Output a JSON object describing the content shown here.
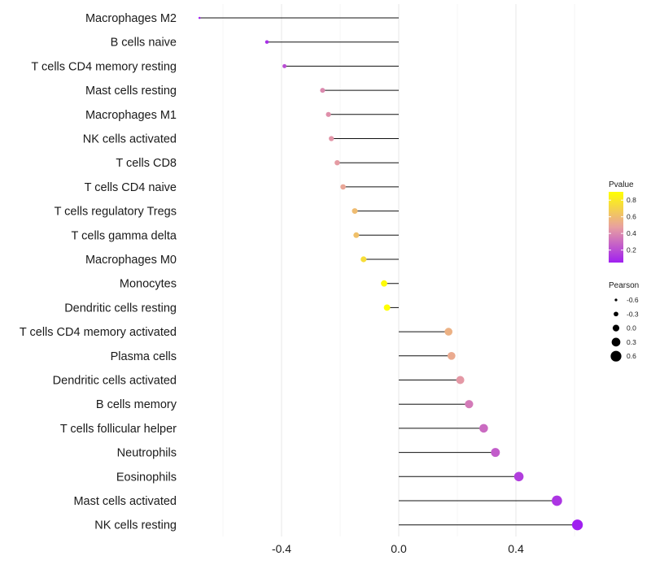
{
  "chart_data": {
    "type": "lollipop",
    "title": "",
    "xlabel": "",
    "ylabel": "",
    "xlim": [
      -0.68,
      0.68
    ],
    "x_ticks": [
      -0.4,
      0.0,
      0.4
    ],
    "x_tick_labels": [
      "-0.4",
      "0.0",
      "0.4"
    ],
    "grid": true,
    "categories": [
      "Macrophages M2",
      "B cells naive",
      "T cells CD4 memory resting",
      "Mast cells resting",
      "Macrophages M1",
      "NK cells activated",
      "T cells CD8",
      "T cells CD4 naive",
      "T cells regulatory  Tregs ",
      "T cells gamma delta",
      "Macrophages M0",
      "Monocytes",
      "Dendritic cells resting",
      "T cells CD4 memory activated",
      "Plasma cells",
      "Dendritic cells activated",
      "B cells memory",
      "T cells follicular helper",
      "Neutrophils",
      "Eosinophils",
      "Mast cells activated",
      "NK cells resting"
    ],
    "pearson": [
      -0.68,
      -0.45,
      -0.39,
      -0.26,
      -0.24,
      -0.23,
      -0.21,
      -0.19,
      -0.15,
      -0.145,
      -0.12,
      -0.05,
      -0.04,
      0.17,
      0.18,
      0.21,
      0.24,
      0.29,
      0.33,
      0.41,
      0.54,
      0.61
    ],
    "pvalue": [
      0.05,
      0.1,
      0.2,
      0.4,
      0.42,
      0.44,
      0.46,
      0.5,
      0.6,
      0.62,
      0.75,
      0.88,
      0.9,
      0.55,
      0.52,
      0.45,
      0.35,
      0.3,
      0.25,
      0.15,
      0.12,
      0.05
    ],
    "color_legend": {
      "title": "Pvalue",
      "ticks": [
        0.2,
        0.4,
        0.6,
        0.8
      ],
      "tick_labels": [
        "0.2",
        "0.4",
        "0.6",
        "0.8"
      ],
      "range": [
        0.05,
        0.9
      ],
      "low_color": "#a020f0",
      "mid_color": "#e8a0a0",
      "high_color": "#ffff00"
    },
    "size_legend": {
      "title": "Pearson",
      "values": [
        -0.6,
        -0.3,
        0.0,
        0.3,
        0.6
      ],
      "labels": [
        "-0.6",
        "-0.3",
        "0.0",
        "0.3",
        "0.6"
      ]
    }
  }
}
